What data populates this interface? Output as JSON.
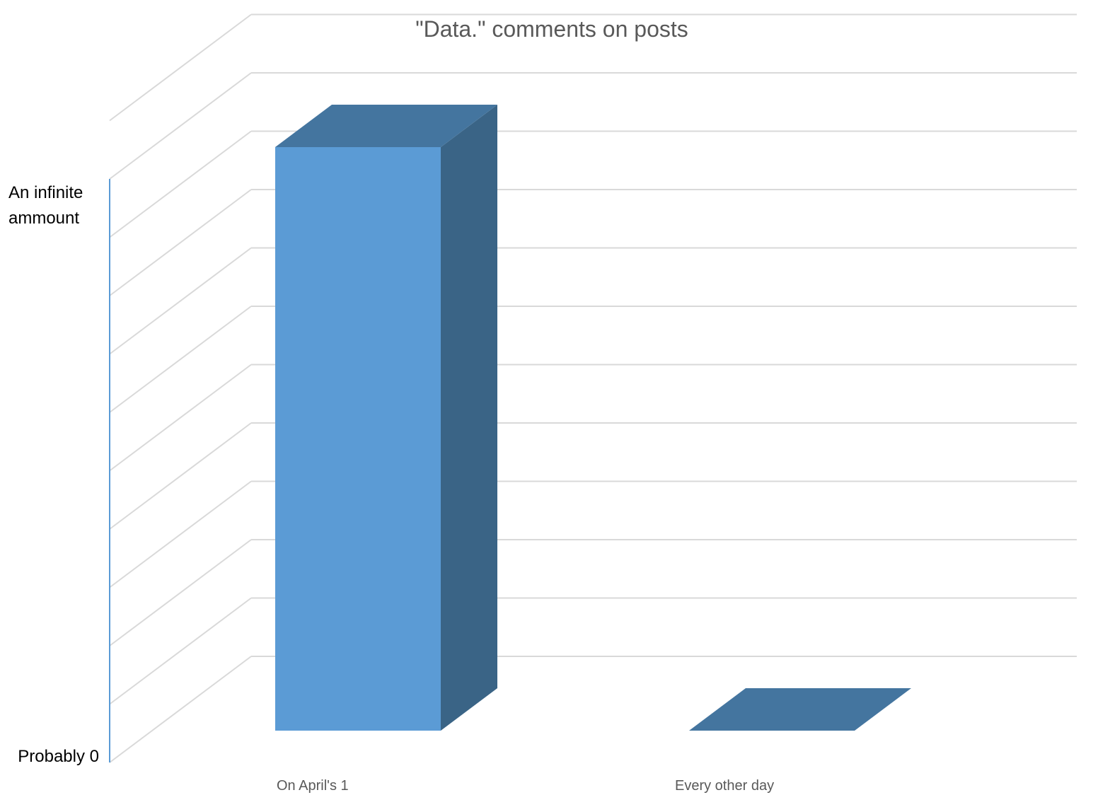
{
  "chart_data": {
    "type": "bar",
    "title": "\"Data.\" comments on posts",
    "xlabel": "",
    "ylabel": "",
    "categories": [
      "On April's 1",
      "Every other day"
    ],
    "values": [
      1,
      0
    ],
    "ylim": [
      0,
      1
    ],
    "y_tick_labels": [
      {
        "value": 0,
        "lines": [
          "Probably 0"
        ]
      },
      {
        "value": 1,
        "lines": [
          "An infinite",
          "ammount"
        ]
      }
    ],
    "grid": true,
    "legend": "none",
    "three_d": true,
    "colors": {
      "bar_front": "#5B9BD5",
      "bar_top": "#44759F",
      "bar_side": "#3A6486",
      "grid": "#D9D9D9",
      "axis": "#5B9BD5"
    }
  }
}
